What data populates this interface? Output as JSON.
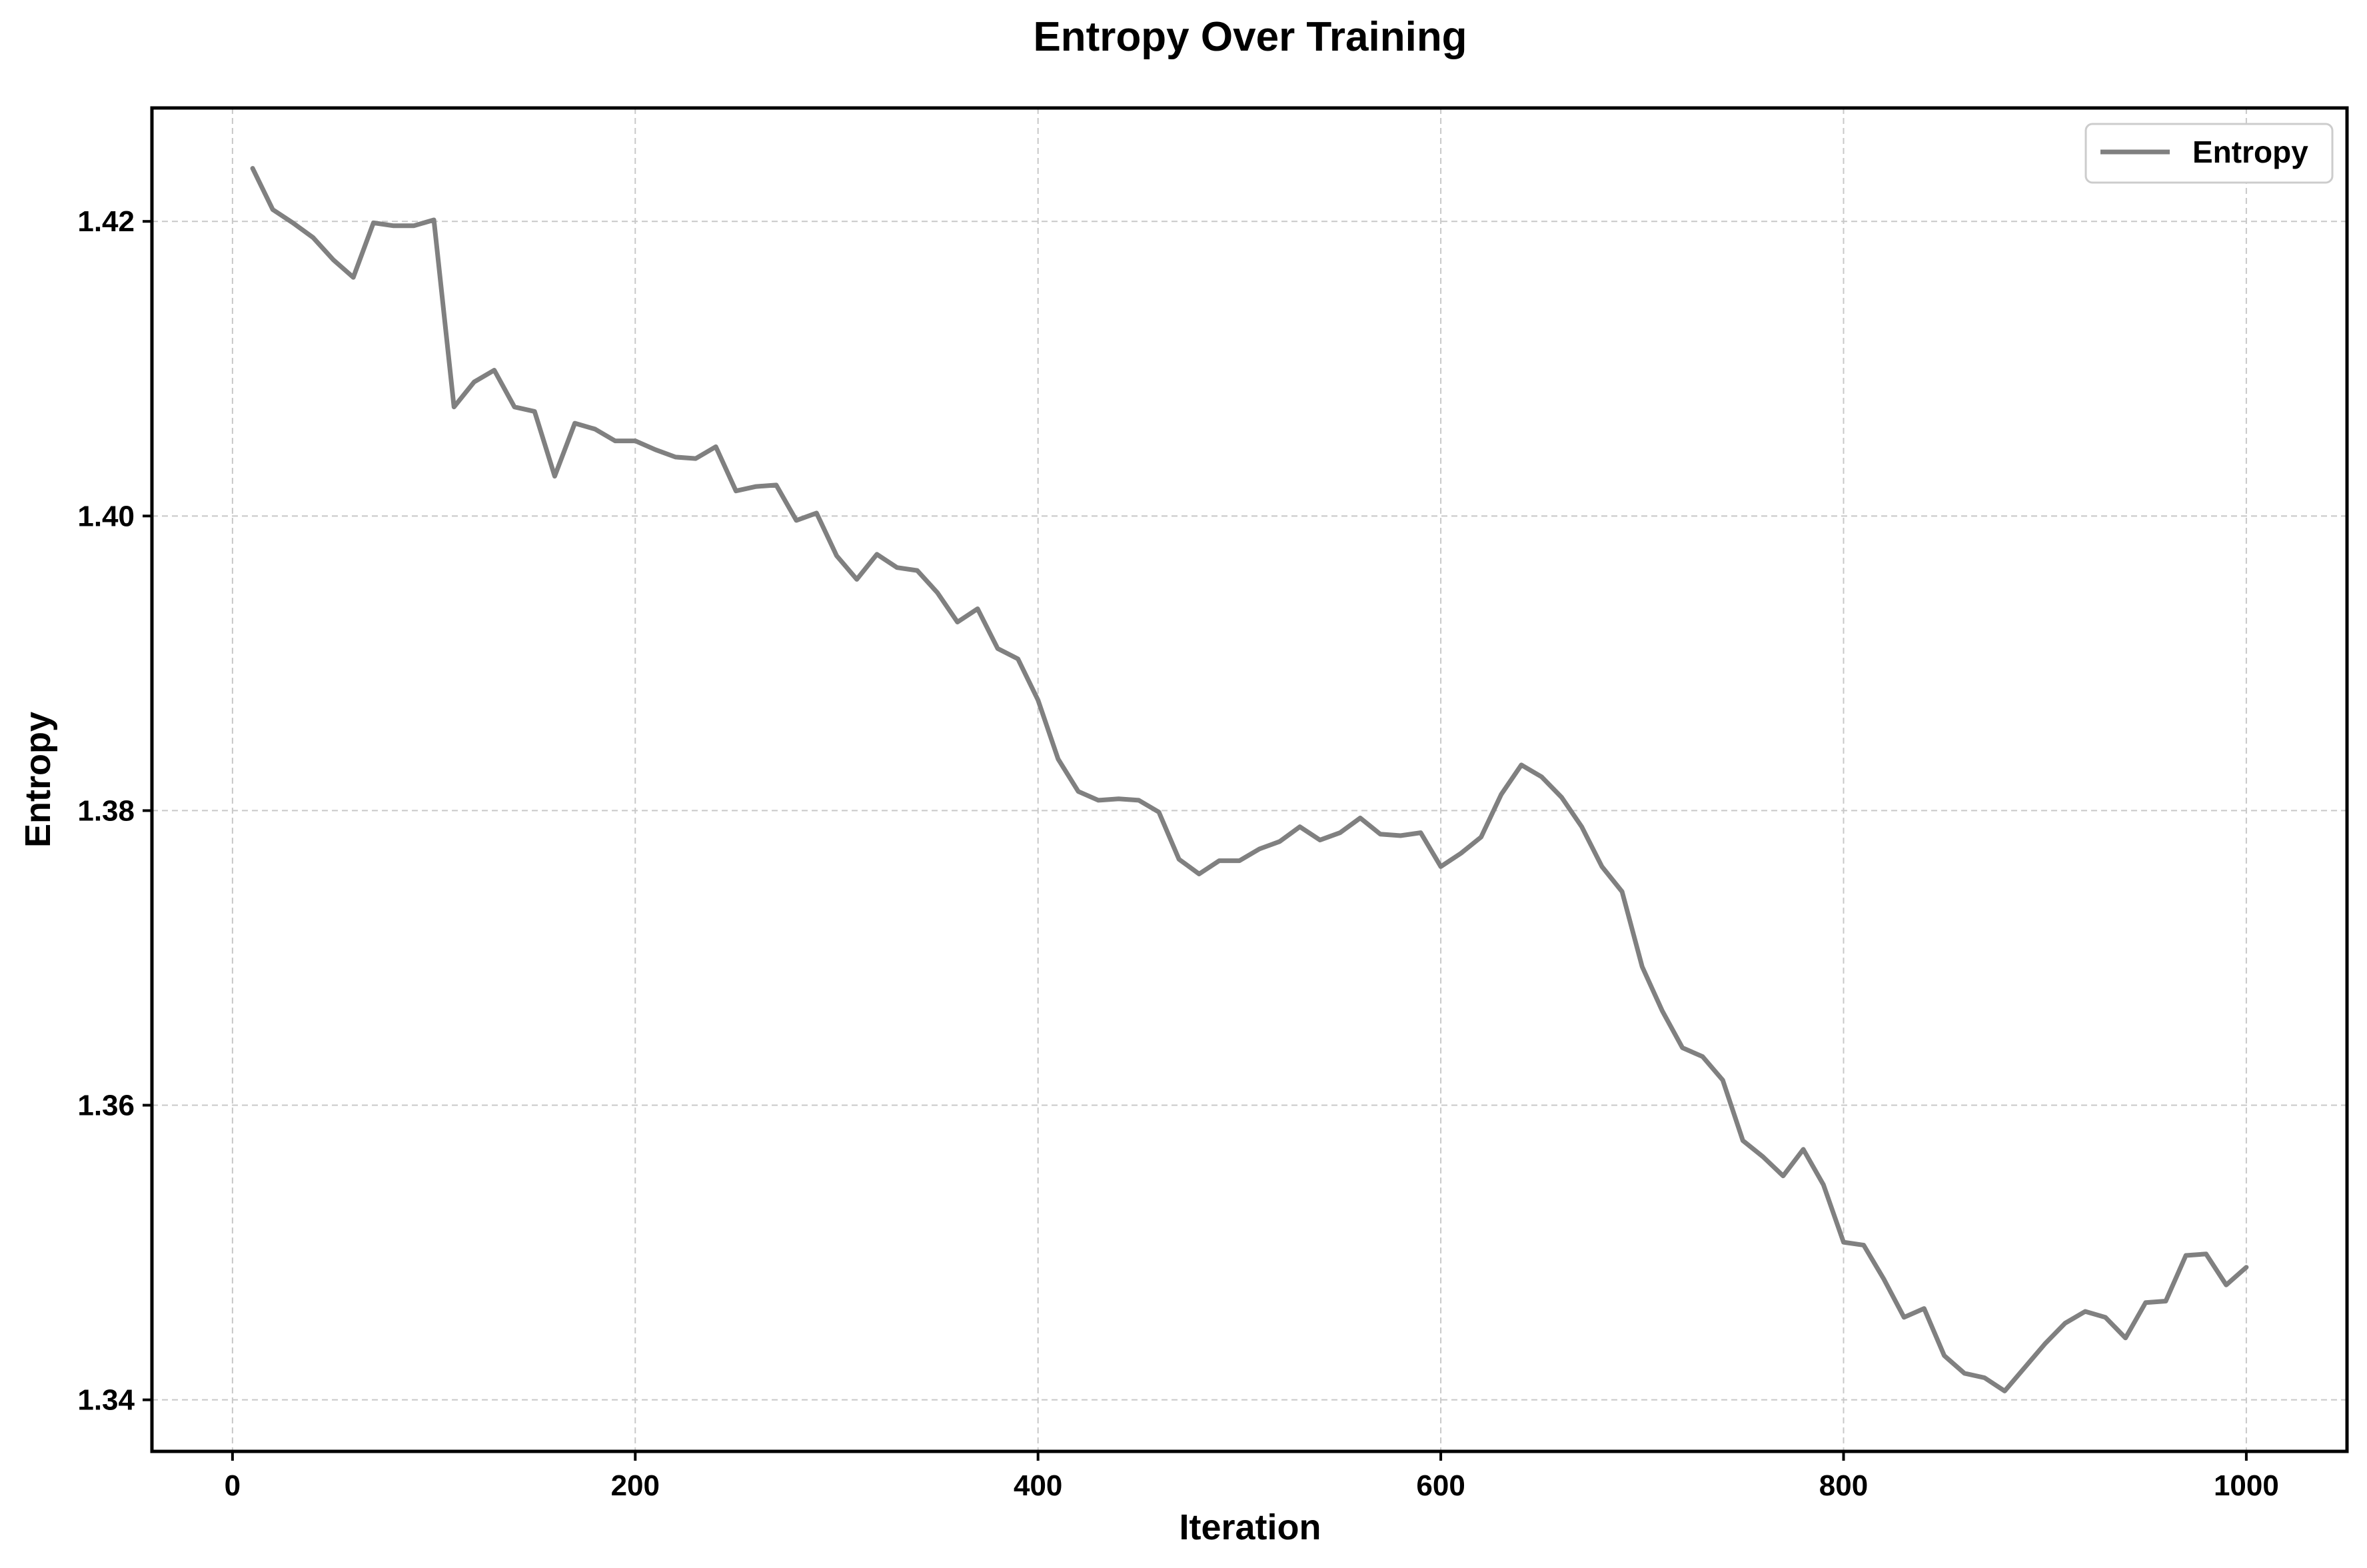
{
  "chart_data": {
    "type": "line",
    "title": "Entropy Over Training",
    "xlabel": "Iteration",
    "ylabel": "Entropy",
    "xlim": [
      -40,
      1050
    ],
    "ylim": [
      1.3365,
      1.4277
    ],
    "xticks": [
      0,
      200,
      400,
      600,
      800,
      1000
    ],
    "xtick_labels": [
      "0",
      "200",
      "400",
      "600",
      "800",
      "1000"
    ],
    "yticks": [
      1.34,
      1.36,
      1.38,
      1.4,
      1.42
    ],
    "ytick_labels": [
      "1.34",
      "1.36",
      "1.38",
      "1.40",
      "1.42"
    ],
    "grid": true,
    "legend_position": "top-right",
    "series": [
      {
        "name": "Entropy",
        "color": "#808080",
        "x": [
          10,
          20,
          30,
          40,
          50,
          60,
          70,
          80,
          90,
          100,
          110,
          120,
          130,
          140,
          150,
          160,
          170,
          180,
          190,
          200,
          210,
          220,
          230,
          240,
          250,
          260,
          270,
          280,
          290,
          300,
          310,
          320,
          330,
          340,
          350,
          360,
          370,
          380,
          390,
          400,
          410,
          420,
          430,
          440,
          450,
          460,
          470,
          480,
          490,
          500,
          510,
          520,
          530,
          540,
          550,
          560,
          570,
          580,
          590,
          600,
          610,
          620,
          630,
          640,
          650,
          660,
          670,
          680,
          690,
          700,
          710,
          720,
          730,
          740,
          750,
          760,
          770,
          780,
          790,
          800,
          810,
          820,
          830,
          840,
          850,
          860,
          870,
          880,
          890,
          900,
          910,
          920,
          930,
          940,
          950,
          960,
          970,
          980,
          990,
          1000
        ],
        "y": [
          1.4236,
          1.4208,
          1.4199,
          1.4189,
          1.4174,
          1.4162,
          1.4199,
          1.4197,
          1.4197,
          1.4201,
          1.4074,
          1.4091,
          1.4099,
          1.4074,
          1.4071,
          1.4027,
          1.4063,
          1.4059,
          1.4051,
          1.4051,
          1.4045,
          1.404,
          1.4039,
          1.4047,
          1.4017,
          1.402,
          1.4021,
          1.3997,
          1.4002,
          1.3973,
          1.3957,
          1.3974,
          1.3965,
          1.3963,
          1.3948,
          1.3928,
          1.3937,
          1.391,
          1.3903,
          1.3875,
          1.3835,
          1.3813,
          1.3807,
          1.3808,
          1.3807,
          1.3799,
          1.3767,
          1.3757,
          1.3766,
          1.3766,
          1.3774,
          1.3779,
          1.3789,
          1.378,
          1.3785,
          1.3795,
          1.3784,
          1.3783,
          1.3785,
          1.3762,
          1.3771,
          1.3782,
          1.3811,
          1.3831,
          1.3823,
          1.3809,
          1.3789,
          1.3762,
          1.3745,
          1.3694,
          1.3664,
          1.3639,
          1.3633,
          1.3617,
          1.3576,
          1.3565,
          1.3552,
          1.357,
          1.3546,
          1.3507,
          1.3505,
          1.3482,
          1.3456,
          1.3462,
          1.343,
          1.3418,
          1.3415,
          1.3406,
          1.3422,
          1.3438,
          1.3452,
          1.346,
          1.3456,
          1.3442,
          1.3466,
          1.3467,
          1.3498,
          1.3499,
          1.3478,
          1.349
        ]
      }
    ]
  }
}
